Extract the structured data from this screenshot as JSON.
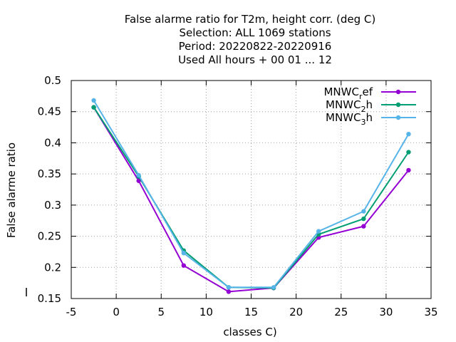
{
  "chart_data": {
    "type": "line",
    "title_lines": [
      "False alarme ratio  for T2m, height corr. (deg C)",
      "Selection: ALL   1069 stations",
      "Period: 20220822-20220916",
      "Used  All hours + 00 01 ... 12"
    ],
    "xlabel": "classes C)",
    "ylabel": "False alarme ratio",
    "xlim": [
      -5,
      35
    ],
    "ylim": [
      0.15,
      0.5
    ],
    "xticks": [
      -5,
      0,
      5,
      10,
      15,
      20,
      25,
      30,
      35
    ],
    "yticks": [
      0.15,
      0.2,
      0.25,
      0.3,
      0.35,
      0.4,
      0.45,
      0.5
    ],
    "xtick_labels": [
      "-5",
      "0",
      "5",
      "10",
      "15",
      "20",
      "25",
      "30",
      "35"
    ],
    "ytick_labels": [
      "0.15",
      "0.2",
      "0.25",
      "0.3",
      "0.35",
      "0.4",
      "0.45",
      "0.5"
    ],
    "grid": true,
    "legend_position": "top-right",
    "x": [
      -2.5,
      2.5,
      7.5,
      12.5,
      17.5,
      22.5,
      27.5,
      32.5
    ],
    "series": [
      {
        "name_main": "MNWC",
        "name_sub": "r",
        "name_tail": "ef",
        "color": "#9400d3",
        "values": [
          0.457,
          0.339,
          0.203,
          0.161,
          0.167,
          0.248,
          0.266,
          0.356
        ]
      },
      {
        "name_main": "MNWC",
        "name_sub": "2",
        "name_tail": "h",
        "color": "#009e73",
        "values": [
          0.457,
          0.346,
          0.227,
          0.168,
          0.167,
          0.253,
          0.278,
          0.385
        ]
      },
      {
        "name_main": "MNWC",
        "name_sub": "3",
        "name_tail": "h",
        "color": "#56b4e9",
        "values": [
          0.468,
          0.348,
          0.223,
          0.168,
          0.168,
          0.258,
          0.29,
          0.414
        ]
      }
    ]
  }
}
